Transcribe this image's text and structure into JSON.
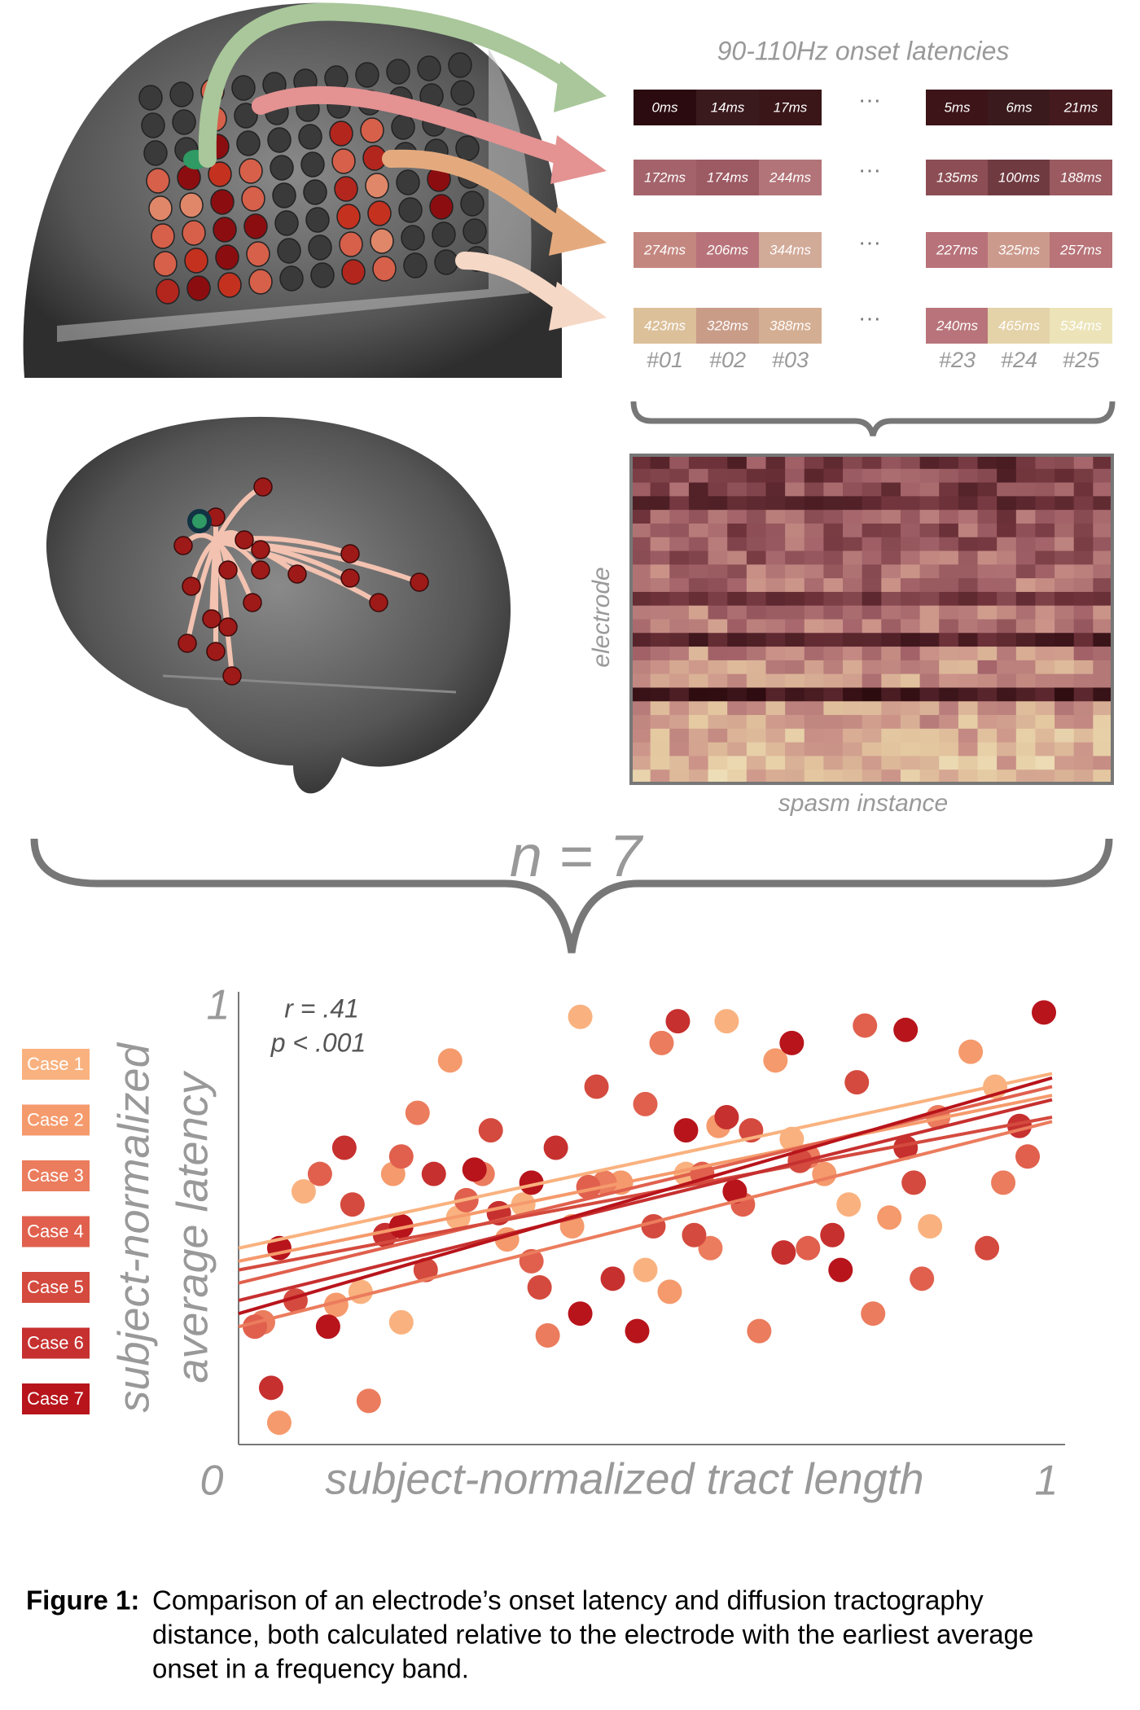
{
  "top_panel": {
    "title": "90-110Hz onset latencies",
    "ellipsis": "···",
    "rows": [
      [
        "0ms",
        "14ms",
        "17ms",
        "5ms",
        "6ms",
        "21ms"
      ],
      [
        "172ms",
        "174ms",
        "244ms",
        "135ms",
        "100ms",
        "188ms"
      ],
      [
        "274ms",
        "206ms",
        "344ms",
        "227ms",
        "325ms",
        "257ms"
      ],
      [
        "423ms",
        "328ms",
        "388ms",
        "240ms",
        "465ms",
        "534ms"
      ]
    ],
    "cell_colors": [
      [
        "#2b0b0f",
        "#3b1a1e",
        "#3a1619",
        "#3d1418",
        "#3a1a1c",
        "#451a1e"
      ],
      [
        "#a4636b",
        "#9c5a63",
        "#b27478",
        "#8c4e54",
        "#6f3a40",
        "#9a5a60"
      ],
      [
        "#c4877f",
        "#b8737a",
        "#d2aa98",
        "#b8727a",
        "#cc9a8c",
        "#b87478"
      ],
      [
        "#dcc09a",
        "#c99c88",
        "#d4ae92",
        "#b8747a",
        "#e4d2a8",
        "#ece4b8"
      ]
    ],
    "columns": [
      "#01",
      "#02",
      "#03",
      "#23",
      "#24",
      "#25"
    ]
  },
  "heatmap": {
    "y_label": "electrode",
    "x_label": "spasm instance"
  },
  "group_label": "n = 7",
  "chart_data": {
    "type": "scatter",
    "x_label": "subject-normalized tract length",
    "y_label": [
      "subject-normalized",
      "average latency"
    ],
    "annotations": [
      "r = .41",
      "p < .001"
    ],
    "xlim": [
      0,
      1
    ],
    "ylim": [
      0,
      1
    ],
    "xticks": [
      0,
      1
    ],
    "yticks": [
      1
    ],
    "series": [
      {
        "name": "Case 1",
        "color": "#f9b27f",
        "x": [
          0.08,
          0.15,
          0.2,
          0.27,
          0.35,
          0.42,
          0.5,
          0.55,
          0.6,
          0.68,
          0.75,
          0.85,
          0.93
        ],
        "y": [
          0.58,
          0.35,
          0.28,
          0.52,
          0.55,
          0.98,
          0.4,
          0.62,
          0.97,
          0.7,
          0.55,
          0.5,
          0.82
        ],
        "fit_x": [
          0,
          1
        ],
        "fit_y": [
          0.45,
          0.85
        ]
      },
      {
        "name": "Case 2",
        "color": "#f59a6c",
        "x": [
          0.05,
          0.12,
          0.19,
          0.26,
          0.33,
          0.41,
          0.47,
          0.53,
          0.59,
          0.66,
          0.72,
          0.8,
          0.9
        ],
        "y": [
          0.05,
          0.32,
          0.62,
          0.88,
          0.47,
          0.5,
          0.6,
          0.35,
          0.73,
          0.88,
          0.62,
          0.52,
          0.9
        ],
        "fit_x": [
          0,
          1
        ],
        "fit_y": [
          0.42,
          0.8
        ]
      },
      {
        "name": "Case 3",
        "color": "#eb7c5d",
        "x": [
          0.03,
          0.16,
          0.22,
          0.3,
          0.38,
          0.45,
          0.52,
          0.58,
          0.64,
          0.7,
          0.78,
          0.86,
          0.94
        ],
        "y": [
          0.28,
          0.1,
          0.76,
          0.62,
          0.25,
          0.6,
          0.92,
          0.45,
          0.26,
          0.66,
          0.3,
          0.75,
          0.6
        ],
        "fit_x": [
          0,
          1
        ],
        "fit_y": [
          0.27,
          0.74
        ]
      },
      {
        "name": "Case 4",
        "color": "#e0604d",
        "x": [
          0.02,
          0.1,
          0.2,
          0.28,
          0.36,
          0.43,
          0.5,
          0.57,
          0.62,
          0.7,
          0.77,
          0.84,
          0.97
        ],
        "y": [
          0.27,
          0.62,
          0.66,
          0.56,
          0.42,
          0.59,
          0.78,
          0.62,
          0.55,
          0.45,
          0.96,
          0.38,
          0.66
        ],
        "fit_x": [
          0,
          1
        ],
        "fit_y": [
          0.37,
          0.82
        ]
      },
      {
        "name": "Case 5",
        "color": "#d44a3e",
        "x": [
          0.07,
          0.14,
          0.23,
          0.31,
          0.37,
          0.44,
          0.51,
          0.56,
          0.63,
          0.69,
          0.76,
          0.83,
          0.92
        ],
        "y": [
          0.33,
          0.55,
          0.4,
          0.72,
          0.36,
          0.82,
          0.5,
          0.48,
          0.72,
          0.65,
          0.83,
          0.6,
          0.45
        ],
        "fit_x": [
          0,
          1
        ],
        "fit_y": [
          0.4,
          0.75
        ]
      },
      {
        "name": "Case 6",
        "color": "#c6302f",
        "x": [
          0.04,
          0.13,
          0.18,
          0.24,
          0.32,
          0.39,
          0.46,
          0.54,
          0.6,
          0.67,
          0.73,
          0.82,
          0.96
        ],
        "y": [
          0.13,
          0.68,
          0.48,
          0.62,
          0.53,
          0.68,
          0.38,
          0.97,
          0.75,
          0.44,
          0.48,
          0.68,
          0.73
        ],
        "fit_x": [
          0,
          1
        ],
        "fit_y": [
          0.33,
          0.79
        ]
      },
      {
        "name": "Case 7",
        "color": "#b8141b",
        "x": [
          0.05,
          0.11,
          0.2,
          0.29,
          0.36,
          0.42,
          0.49,
          0.55,
          0.61,
          0.68,
          0.74,
          0.82,
          0.99
        ],
        "y": [
          0.45,
          0.27,
          0.5,
          0.63,
          0.6,
          0.3,
          0.26,
          0.72,
          0.58,
          0.92,
          0.4,
          0.95,
          0.99
        ],
        "fit_x": [
          0,
          1
        ],
        "fit_y": [
          0.3,
          0.84
        ]
      }
    ]
  },
  "caption": {
    "label": "Figure 1:",
    "lines": [
      "Comparison of an electrode’s onset latency and diffusion tractography",
      "distance, both calculated relative to the electrode with the earliest average",
      "onset in a frequency band."
    ]
  }
}
